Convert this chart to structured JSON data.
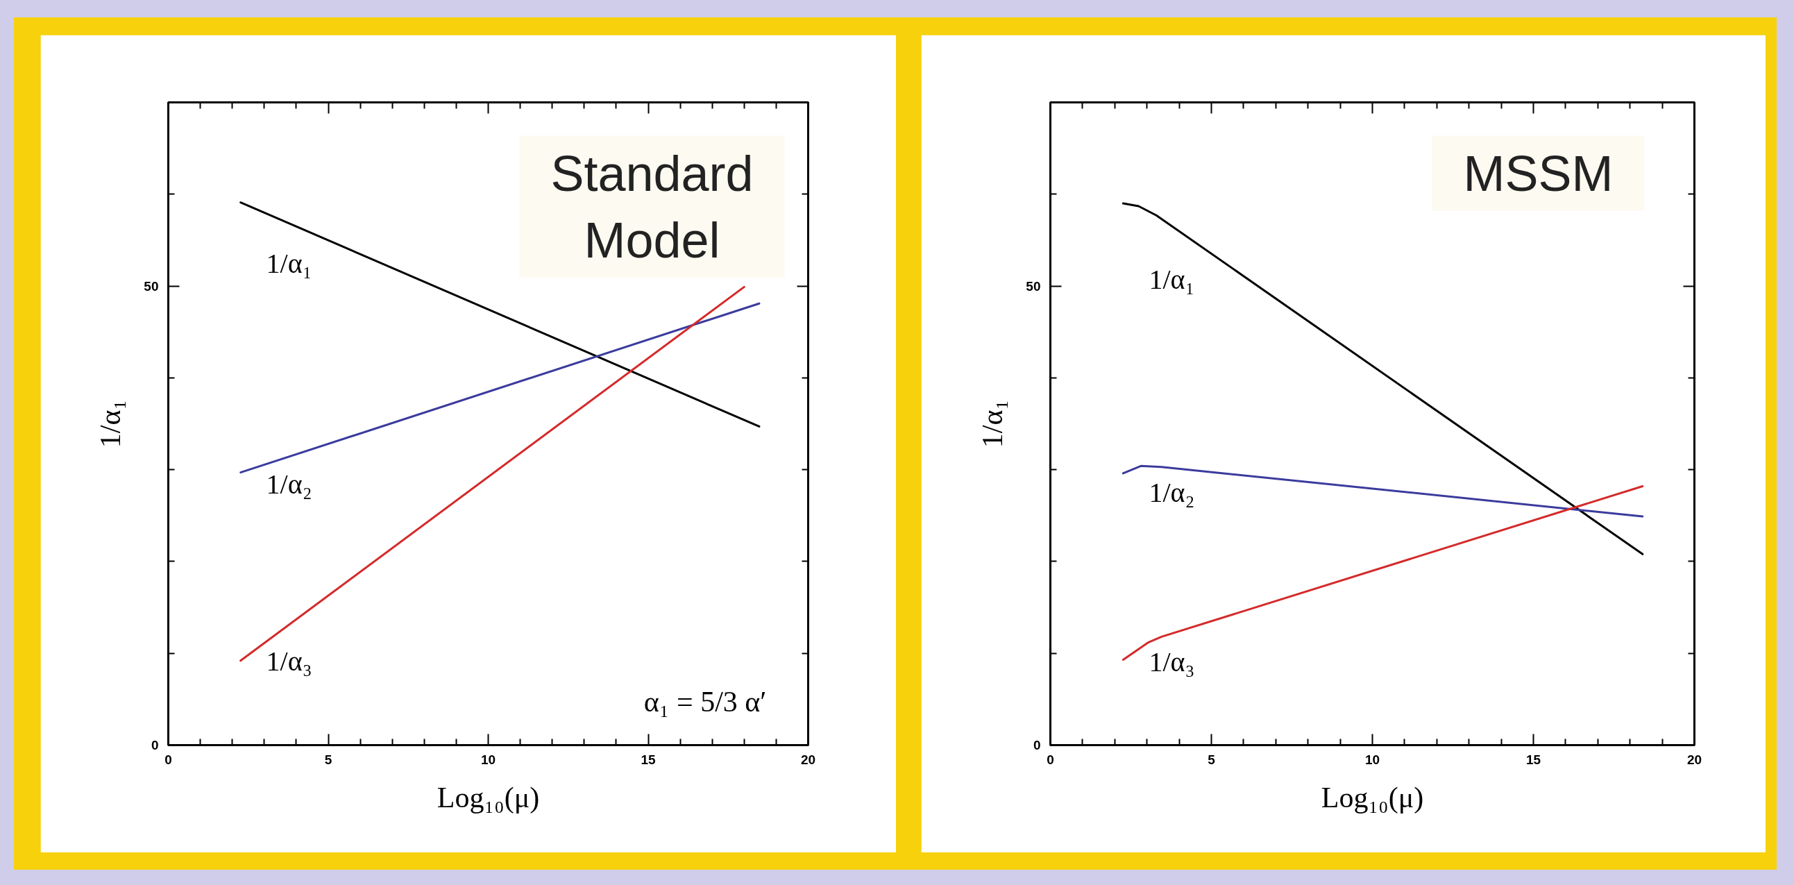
{
  "chart_data": [
    {
      "type": "line",
      "title": "Standard Model",
      "xlabel": "Log₁₀(μ)",
      "ylabel": "1/α₁",
      "xlim": [
        0,
        20
      ],
      "ylim": [
        0,
        70
      ],
      "xticks": [
        0,
        {
          "value": 1,
          "label": null
        },
        {
          "value": 2,
          "label": null
        },
        {
          "value": 3,
          "label": null
        },
        {
          "value": 4,
          "label": null
        },
        5,
        {
          "value": 6,
          "label": null
        },
        {
          "value": 7,
          "label": null
        },
        {
          "value": 8,
          "label": null
        },
        {
          "value": 9,
          "label": null
        },
        10,
        {
          "value": 11,
          "label": null
        },
        {
          "value": 12,
          "label": null
        },
        {
          "value": 13,
          "label": null
        },
        {
          "value": 14,
          "label": null
        },
        15,
        {
          "value": 16,
          "label": null
        },
        {
          "value": 17,
          "label": null
        },
        {
          "value": 18,
          "label": null
        },
        {
          "value": 19,
          "label": null
        },
        20
      ],
      "yticks": [
        0,
        {
          "value": 10,
          "label": null
        },
        {
          "value": 20,
          "label": null
        },
        {
          "value": 30,
          "label": null
        },
        {
          "value": 40,
          "label": null
        },
        50,
        {
          "value": 60,
          "label": null
        }
      ],
      "series": [
        {
          "name": "1/α₁",
          "color": "#000000",
          "x": [
            2.26,
            18.47
          ],
          "values": [
            59.1,
            34.7
          ]
        },
        {
          "name": "1/α₂",
          "color": "#3b3b9e",
          "x": [
            2.26,
            18.47
          ],
          "values": [
            29.7,
            48.1
          ]
        },
        {
          "name": "1/α₃",
          "color": "#d42a2a",
          "x": [
            2.26,
            18.0
          ],
          "values": [
            9.2,
            49.9
          ]
        }
      ],
      "annotations": [
        "α₁ = 5/3 α′"
      ]
    },
    {
      "type": "line",
      "title": "MSSM",
      "xlabel": "Log₁₀(μ)",
      "ylabel": "1/α₁",
      "xlim": [
        0,
        20
      ],
      "ylim": [
        0,
        70
      ],
      "xticks": [
        0,
        {
          "value": 1,
          "label": null
        },
        {
          "value": 2,
          "label": null
        },
        {
          "value": 3,
          "label": null
        },
        {
          "value": 4,
          "label": null
        },
        5,
        {
          "value": 6,
          "label": null
        },
        {
          "value": 7,
          "label": null
        },
        {
          "value": 8,
          "label": null
        },
        {
          "value": 9,
          "label": null
        },
        10,
        {
          "value": 11,
          "label": null
        },
        {
          "value": 12,
          "label": null
        },
        {
          "value": 13,
          "label": null
        },
        {
          "value": 14,
          "label": null
        },
        15,
        {
          "value": 16,
          "label": null
        },
        {
          "value": 17,
          "label": null
        },
        {
          "value": 18,
          "label": null
        },
        {
          "value": 19,
          "label": null
        },
        20
      ],
      "yticks": [
        0,
        {
          "value": 10,
          "label": null
        },
        {
          "value": 20,
          "label": null
        },
        {
          "value": 30,
          "label": null
        },
        {
          "value": 40,
          "label": null
        },
        50,
        {
          "value": 60,
          "label": null
        }
      ],
      "series": [
        {
          "name": "1/α₁",
          "color": "#000000",
          "x": [
            2.26,
            2.74,
            3.29,
            18.39
          ],
          "values": [
            59.0,
            58.7,
            57.7,
            20.8
          ]
        },
        {
          "name": "1/α₂",
          "color": "#3b3b9e",
          "x": [
            2.26,
            2.81,
            3.45,
            18.39
          ],
          "values": [
            29.6,
            30.4,
            30.3,
            24.9
          ]
        },
        {
          "name": "1/α₃",
          "color": "#d42a2a",
          "x": [
            2.26,
            3.05,
            3.45,
            18.39
          ],
          "values": [
            9.3,
            11.2,
            11.8,
            28.2
          ]
        }
      ]
    }
  ]
}
